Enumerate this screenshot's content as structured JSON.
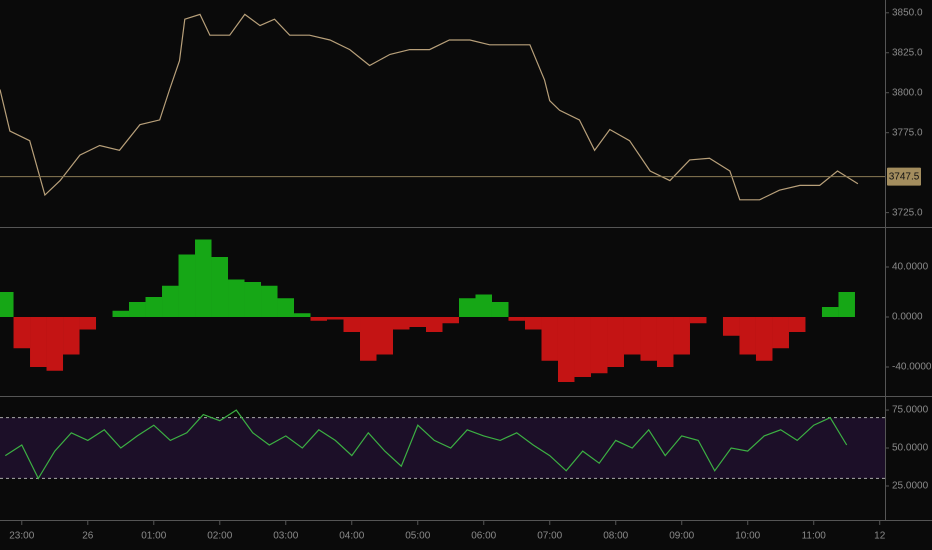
{
  "chart_data": [
    {
      "type": "line",
      "color": "#b8a07a",
      "x": [
        -0.33,
        -0.18,
        0.12,
        0.35,
        0.58,
        0.88,
        1.18,
        1.48,
        1.79,
        2.09,
        2.24,
        2.39,
        2.47,
        2.7,
        2.85,
        3.15,
        3.38,
        3.61,
        3.83,
        4.06,
        4.36,
        4.67,
        4.97,
        5.27,
        5.58,
        5.88,
        6.18,
        6.48,
        6.79,
        7.09,
        7.39,
        7.7,
        7.92,
        8.0,
        8.15,
        8.45,
        8.68,
        8.91,
        9.21,
        9.52,
        9.82,
        10.12,
        10.42,
        10.73,
        10.88,
        11.18,
        11.48,
        11.79,
        12.09,
        12.36,
        12.67
      ],
      "values": [
        3802,
        3776,
        3770,
        3736,
        3745,
        3761,
        3767,
        3764,
        3780,
        3783,
        3802,
        3820,
        3846,
        3849,
        3836,
        3836,
        3849,
        3842,
        3846,
        3836,
        3836,
        3833,
        3827,
        3817,
        3824,
        3827,
        3827,
        3833,
        3833,
        3830,
        3830,
        3830,
        3808,
        3795,
        3789,
        3783,
        3764,
        3777,
        3770,
        3751,
        3745,
        3758,
        3759,
        3751,
        3733,
        3733,
        3739,
        3742,
        3742,
        3751,
        3743
      ],
      "xlim": [
        -0.33,
        13.08
      ],
      "ylim": [
        3716,
        3858
      ],
      "yticks": [
        {
          "value": 3725,
          "label": "3725.0"
        },
        {
          "value": 3775,
          "label": "3775.0"
        },
        {
          "value": 3800,
          "label": "3800.0"
        },
        {
          "value": 3825,
          "label": "3825.0"
        },
        {
          "value": 3850,
          "label": "3850.0"
        }
      ],
      "last_price": 3747.5
    },
    {
      "type": "bar",
      "positive_color": "#16a716",
      "negative_color": "#c41414",
      "x": [
        -0.25,
        0,
        0.25,
        0.5,
        0.75,
        1,
        1.25,
        1.5,
        1.75,
        2,
        2.25,
        2.5,
        2.75,
        3,
        3.25,
        3.5,
        3.75,
        4,
        4.25,
        4.5,
        4.75,
        5,
        5.25,
        5.5,
        5.75,
        6,
        6.25,
        6.5,
        6.75,
        7,
        7.25,
        7.5,
        7.75,
        8,
        8.25,
        8.5,
        8.75,
        9,
        9.25,
        9.5,
        9.75,
        10,
        10.25,
        10.5,
        10.75,
        11,
        11.25,
        11.5,
        11.75,
        12,
        12.25,
        12.5
      ],
      "values": [
        20,
        -25,
        -40,
        -43,
        -30,
        -10,
        0,
        5,
        12,
        16,
        25,
        50,
        62,
        48,
        30,
        28,
        25,
        15,
        3,
        -3,
        -2,
        -12,
        -35,
        -30,
        -10,
        -8,
        -12,
        -5,
        15,
        18,
        12,
        -3,
        -10,
        -35,
        -52,
        -48,
        -45,
        -40,
        -30,
        -35,
        -40,
        -30,
        -5,
        0,
        -15,
        -30,
        -35,
        -25,
        -12,
        0,
        8,
        20
      ],
      "xlim": [
        -0.33,
        13.08
      ],
      "ylim": [
        -63.2,
        71.2
      ],
      "yticks": [
        {
          "value": 40,
          "label": "40.0000"
        },
        {
          "value": 0,
          "label": "0.0000"
        },
        {
          "value": -40,
          "label": "-40.0000"
        }
      ]
    },
    {
      "type": "line",
      "color": "#3cb043",
      "x": [
        -0.25,
        0,
        0.25,
        0.5,
        0.75,
        1,
        1.25,
        1.5,
        1.75,
        2,
        2.25,
        2.5,
        2.75,
        3,
        3.25,
        3.5,
        3.75,
        4,
        4.25,
        4.5,
        4.75,
        5,
        5.25,
        5.5,
        5.75,
        6,
        6.25,
        6.5,
        6.75,
        7,
        7.25,
        7.5,
        7.75,
        8,
        8.25,
        8.5,
        8.75,
        9,
        9.25,
        9.5,
        9.75,
        10,
        10.25,
        10.5,
        10.75,
        11,
        11.25,
        11.5,
        11.75,
        12,
        12.25,
        12.5
      ],
      "values": [
        45,
        52,
        30,
        48,
        60,
        55,
        62,
        50,
        58,
        65,
        55,
        60,
        72,
        68,
        75,
        60,
        52,
        58,
        50,
        62,
        55,
        45,
        60,
        48,
        38,
        65,
        55,
        50,
        62,
        58,
        55,
        60,
        52,
        45,
        35,
        48,
        40,
        55,
        50,
        62,
        45,
        58,
        55,
        35,
        50,
        48,
        58,
        62,
        55,
        65,
        70,
        52
      ],
      "xlim": [
        -0.33,
        13.08
      ],
      "ylim": [
        2.6,
        83.6
      ],
      "yticks": [
        {
          "value": 75,
          "label": "75.0000"
        },
        {
          "value": 50,
          "label": "50.0000"
        },
        {
          "value": 25,
          "label": "25.0000"
        }
      ],
      "bands": [
        30,
        70
      ],
      "xticks": [
        {
          "value": 0,
          "label": "23:00"
        },
        {
          "value": 1,
          "label": "26"
        },
        {
          "value": 2,
          "label": "01:00"
        },
        {
          "value": 3,
          "label": "02:00"
        },
        {
          "value": 4,
          "label": "03:00"
        },
        {
          "value": 5,
          "label": "04:00"
        },
        {
          "value": 6,
          "label": "05:00"
        },
        {
          "value": 7,
          "label": "06:00"
        },
        {
          "value": 8,
          "label": "07:00"
        },
        {
          "value": 9,
          "label": "08:00"
        },
        {
          "value": 10,
          "label": "09:00"
        },
        {
          "value": 11,
          "label": "10:00"
        },
        {
          "value": 12,
          "label": "11:00"
        },
        {
          "value": 13,
          "label": "12"
        }
      ]
    }
  ]
}
